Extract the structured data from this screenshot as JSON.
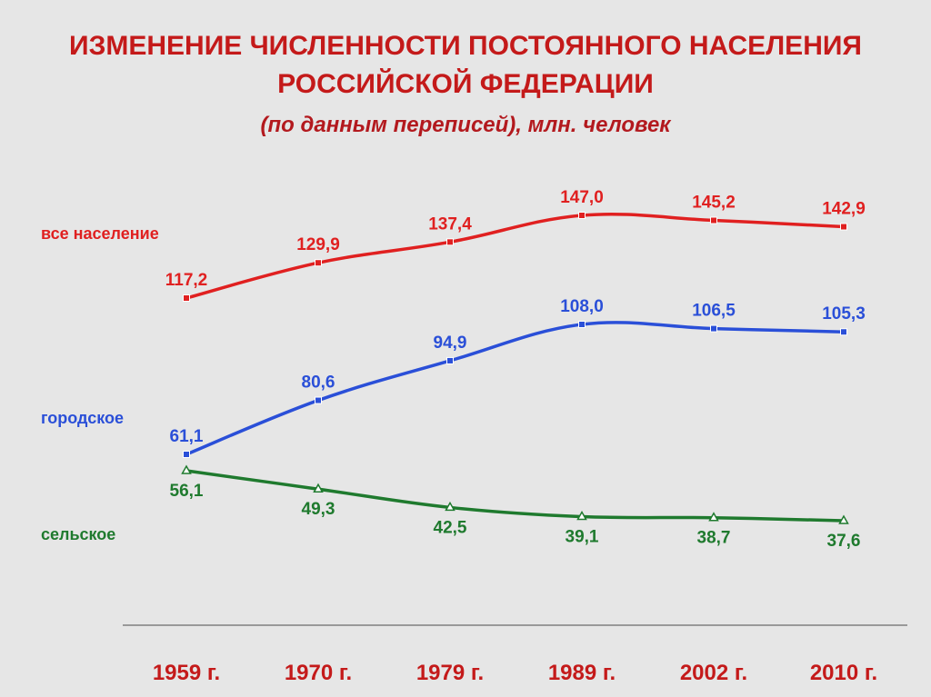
{
  "title_line1": "ИЗМЕНЕНИЕ ЧИСЛЕННОСТИ ПОСТОЯННОГО НАСЕЛЕНИЯ",
  "title_line2": "РОССИЙСКОЙ ФЕДЕРАЦИИ",
  "subtitle": "(по данным переписей), млн. человек",
  "chart_data": {
    "type": "line",
    "title": "ИЗМЕНЕНИЕ ЧИСЛЕННОСТИ ПОСТОЯННОГО НАСЕЛЕНИЯ РОССИЙСКОЙ ФЕДЕРАЦИИ",
    "subtitle": "(по данным переписей), млн. человек",
    "categories": [
      "1959 г.",
      "1970 г.",
      "1979 г.",
      "1989 г.",
      "2002 г.",
      "2010 г."
    ],
    "series": [
      {
        "name": "все население",
        "color": "#e02020",
        "values": [
          117.2,
          129.9,
          137.4,
          147.0,
          145.2,
          142.9
        ],
        "labels": [
          "117,2",
          "129,9",
          "137,4",
          "147,0",
          "145,2",
          "142,9"
        ]
      },
      {
        "name": "городское",
        "color": "#2a4fd8",
        "values": [
          61.1,
          80.6,
          94.9,
          108.0,
          106.5,
          105.3
        ],
        "labels": [
          "61,1",
          "80,6",
          "94,9",
          "108,0",
          "106,5",
          "105,3"
        ]
      },
      {
        "name": "сельское",
        "color": "#1f7a2e",
        "values": [
          56.1,
          49.3,
          42.5,
          39.1,
          38.7,
          37.6
        ],
        "labels": [
          "56,1",
          "49,3",
          "42,5",
          "39,1",
          "38,7",
          "37,6"
        ]
      }
    ],
    "grid": false,
    "legend": "left, inline labels beside each series"
  }
}
